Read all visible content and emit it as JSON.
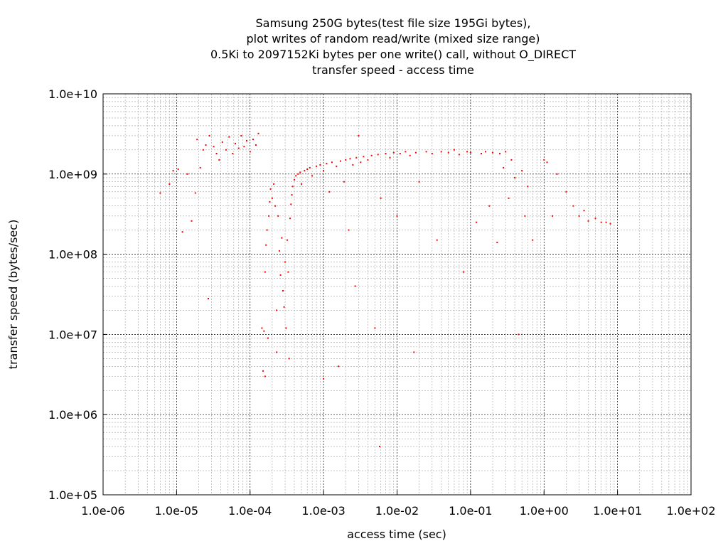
{
  "chart_data": {
    "type": "scatter",
    "title_lines": [
      "Samsung 250G bytes(test file size 195Gi bytes),",
      "plot writes of random read/write (mixed size range)",
      "0.5Ki to 2097152Ki bytes per one write() call, without O_DIRECT",
      "transfer speed - access time"
    ],
    "xlabel": "access time (sec)",
    "ylabel": "transfer speed (bytes/sec)",
    "x_scale": "log",
    "y_scale": "log",
    "xlim": [
      1e-06,
      100
    ],
    "ylim": [
      100000.0,
      10000000000.0
    ],
    "x_tick_labels": [
      "1.0e-06",
      "1.0e-05",
      "1.0e-04",
      "1.0e-03",
      "1.0e-02",
      "1.0e-01",
      "1.0e+00",
      "1.0e+01",
      "1.0e+02"
    ],
    "y_tick_labels": [
      "1.0e+05",
      "1.0e+06",
      "1.0e+07",
      "1.0e+08",
      "1.0e+09",
      "1.0e+10"
    ],
    "grid": true,
    "marker_color": "#ff0000",
    "series": [
      {
        "points": [
          [
            6e-06,
            580000000.0
          ],
          [
            8e-06,
            750000000.0
          ],
          [
            9e-06,
            1100000000.0
          ],
          [
            1.05e-05,
            1150000000.0
          ],
          [
            1.2e-05,
            190000000.0
          ],
          [
            1.4e-05,
            1000000000.0
          ],
          [
            1.6e-05,
            260000000.0
          ],
          [
            1.8e-05,
            580000000.0
          ],
          [
            1.9e-05,
            2700000000.0
          ],
          [
            2.1e-05,
            1200000000.0
          ],
          [
            2.3e-05,
            2000000000.0
          ],
          [
            2.5e-05,
            2300000000.0
          ],
          [
            2.7e-05,
            28000000.0
          ],
          [
            2.8e-05,
            3000000000.0
          ],
          [
            3.2e-05,
            2200000000.0
          ],
          [
            3.5e-05,
            1800000000.0
          ],
          [
            3.8e-05,
            1500000000.0
          ],
          [
            4.2e-05,
            2500000000.0
          ],
          [
            4.7e-05,
            2000000000.0
          ],
          [
            5.2e-05,
            2900000000.0
          ],
          [
            5.8e-05,
            1800000000.0
          ],
          [
            6.3e-05,
            2400000000.0
          ],
          [
            7e-05,
            2100000000.0
          ],
          [
            7.6e-05,
            3000000000.0
          ],
          [
            8.3e-05,
            2200000000.0
          ],
          [
            9e-05,
            2600000000.0
          ],
          [
            0.0001,
            1900000000.0
          ],
          [
            0.00011,
            2700000000.0
          ],
          [
            0.00012,
            2300000000.0
          ],
          [
            0.00013,
            3200000000.0
          ],
          [
            0.000145,
            12000000.0
          ],
          [
            0.00015,
            3500000.0
          ],
          [
            0.000155,
            11000000.0
          ],
          [
            0.00016,
            3000000.0
          ],
          [
            0.00016,
            60000000.0
          ],
          [
            0.000165,
            130000000.0
          ],
          [
            0.00017,
            200000000.0
          ],
          [
            0.000175,
            9000000.0
          ],
          [
            0.00018,
            300000000.0
          ],
          [
            0.000185,
            450000000.0
          ],
          [
            0.00019,
            650000000.0
          ],
          [
            0.0002,
            500000000.0
          ],
          [
            0.00021,
            750000000.0
          ],
          [
            0.00022,
            400000000.0
          ],
          [
            0.00023,
            6000000.0
          ],
          [
            0.00023,
            20000000.0
          ],
          [
            0.00024,
            300000000.0
          ],
          [
            0.00025,
            110000000.0
          ],
          [
            0.00026,
            55000000.0
          ],
          [
            0.00027,
            160000000.0
          ],
          [
            0.00028,
            35000000.0
          ],
          [
            0.00029,
            22000000.0
          ],
          [
            0.0003,
            80000000.0
          ],
          [
            0.00031,
            12000000.0
          ],
          [
            0.00032,
            150000000.0
          ],
          [
            0.00033,
            60000000.0
          ],
          [
            0.00034,
            5000000.0
          ],
          [
            0.00035,
            280000000.0
          ],
          [
            0.00036,
            420000000.0
          ],
          [
            0.00037,
            550000000.0
          ],
          [
            0.00038,
            700000000.0
          ],
          [
            0.0004,
            850000000.0
          ],
          [
            0.00042,
            950000000.0
          ],
          [
            0.00045,
            1000000000.0
          ],
          [
            0.00048,
            1050000000.0
          ],
          [
            0.0005,
            750000000.0
          ],
          [
            0.00055,
            1100000000.0
          ],
          [
            0.0006,
            1150000000.0
          ],
          [
            0.00065,
            1200000000.0
          ],
          [
            0.0007,
            950000000.0
          ],
          [
            0.0008,
            1250000000.0
          ],
          [
            0.0009,
            1300000000.0
          ],
          [
            0.001,
            1100000000.0
          ],
          [
            0.001,
            2800000.0
          ],
          [
            0.0011,
            1350000000.0
          ],
          [
            0.0012,
            600000000.0
          ],
          [
            0.0013,
            1400000000.0
          ],
          [
            0.0015,
            1250000000.0
          ],
          [
            0.0016,
            4000000.0
          ],
          [
            0.0017,
            1450000000.0
          ],
          [
            0.0019,
            800000000.0
          ],
          [
            0.002,
            1500000000.0
          ],
          [
            0.0022,
            200000000.0
          ],
          [
            0.0023,
            1550000000.0
          ],
          [
            0.0025,
            1300000000.0
          ],
          [
            0.0027,
            40000000.0
          ],
          [
            0.0028,
            1600000000.0
          ],
          [
            0.003,
            3000000000.0
          ],
          [
            0.0032,
            1400000000.0
          ],
          [
            0.0035,
            1650000000.0
          ],
          [
            0.004,
            1500000000.0
          ],
          [
            0.0045,
            1700000000.0
          ],
          [
            0.005,
            12000000.0
          ],
          [
            0.0055,
            1750000000.0
          ],
          [
            0.0058,
            400000.0
          ],
          [
            0.006,
            500000000.0
          ],
          [
            0.007,
            1800000000.0
          ],
          [
            0.008,
            1600000000.0
          ],
          [
            0.009,
            1850000000.0
          ],
          [
            0.01,
            300000000.0
          ],
          [
            0.011,
            1800000000.0
          ],
          [
            0.013,
            1900000000.0
          ],
          [
            0.015,
            1700000000.0
          ],
          [
            0.017,
            6000000.0
          ],
          [
            0.018,
            1850000000.0
          ],
          [
            0.02,
            800000000.0
          ],
          [
            0.025,
            1900000000.0
          ],
          [
            0.03,
            1800000000.0
          ],
          [
            0.035,
            150000000.0
          ],
          [
            0.04,
            1900000000.0
          ],
          [
            0.05,
            1850000000.0
          ],
          [
            0.06,
            2000000000.0
          ],
          [
            0.07,
            1750000000.0
          ],
          [
            0.08,
            60000000.0
          ],
          [
            0.09,
            1900000000.0
          ],
          [
            0.1,
            1850000000.0
          ],
          [
            0.12,
            250000000.0
          ],
          [
            0.14,
            1800000000.0
          ],
          [
            0.16,
            1900000000.0
          ],
          [
            0.18,
            400000000.0
          ],
          [
            0.2,
            1850000000.0
          ],
          [
            0.23,
            140000000.0
          ],
          [
            0.25,
            1800000000.0
          ],
          [
            0.28,
            1200000000.0
          ],
          [
            0.3,
            1900000000.0
          ],
          [
            0.33,
            500000000.0
          ],
          [
            0.36,
            1500000000.0
          ],
          [
            0.4,
            900000000.0
          ],
          [
            0.45,
            10000000.0
          ],
          [
            0.5,
            1100000000.0
          ],
          [
            0.55,
            300000000.0
          ],
          [
            0.6,
            700000000.0
          ],
          [
            0.7,
            150000000.0
          ],
          [
            1.0,
            1500000000.0
          ],
          [
            1.1,
            1400000000.0
          ],
          [
            1.3,
            300000000.0
          ],
          [
            1.5,
            1000000000.0
          ],
          [
            2.0,
            600000000.0
          ],
          [
            2.5,
            400000000.0
          ],
          [
            3.0,
            300000000.0
          ],
          [
            3.5,
            350000000.0
          ],
          [
            4.0,
            260000000.0
          ],
          [
            5.0,
            280000000.0
          ],
          [
            6.0,
            250000000.0
          ],
          [
            7.0,
            250000000.0
          ],
          [
            8.0,
            240000000.0
          ]
        ]
      }
    ]
  }
}
